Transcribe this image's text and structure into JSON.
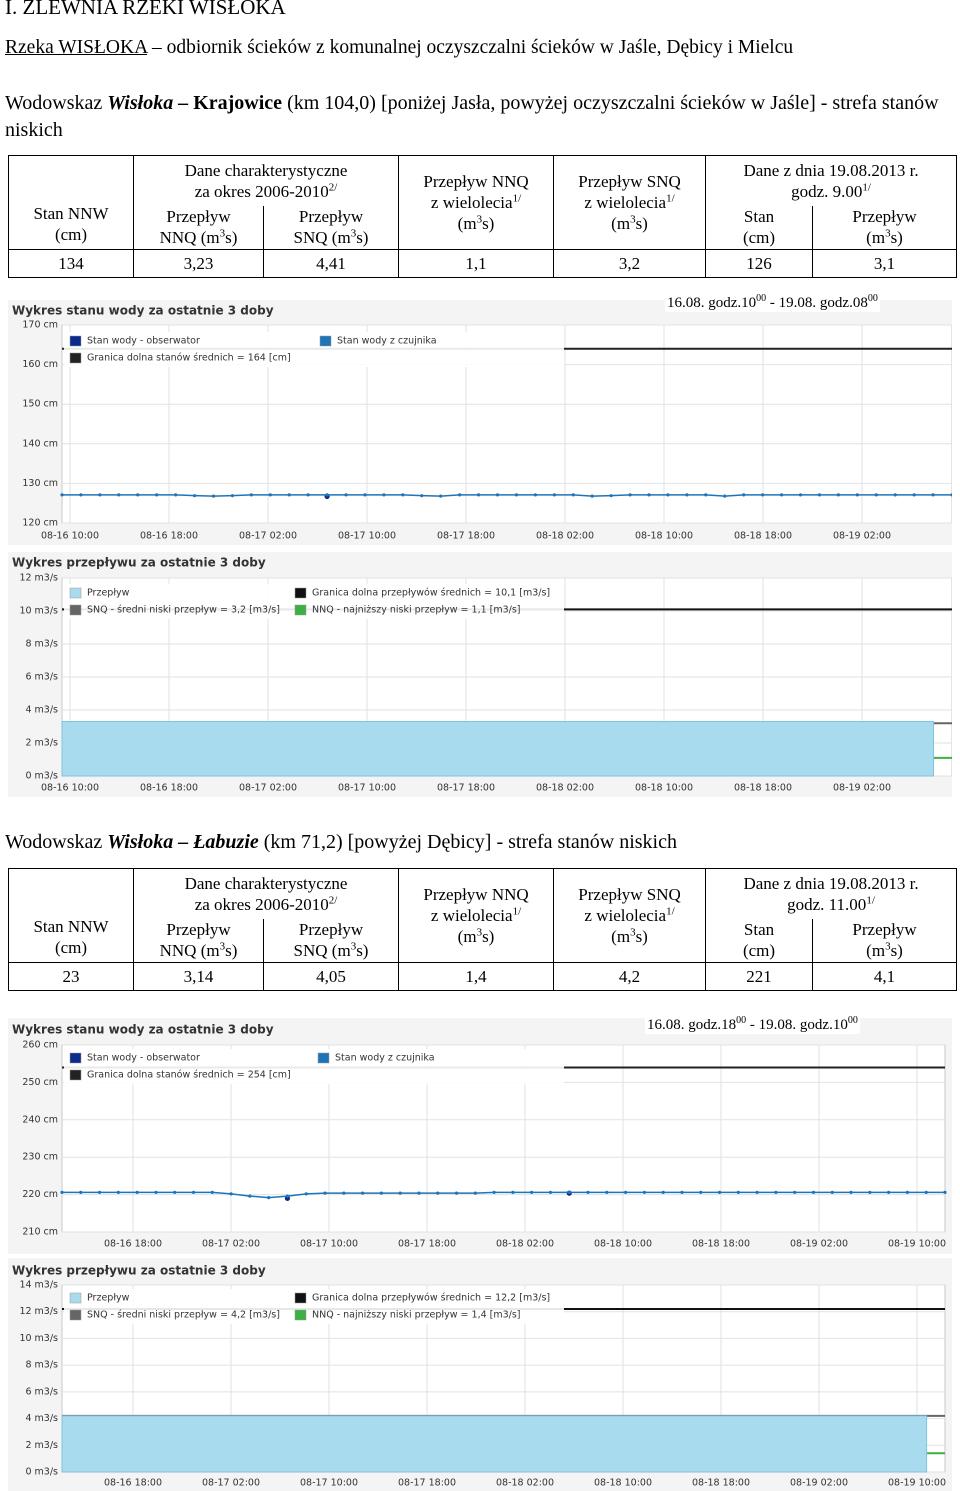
{
  "heading": "I. ZLEWNIA RZEKI WISŁOKA",
  "river": {
    "name": "Rzeka WISŁOKA",
    "text": " – odbiornik ścieków z komunalnej oczyszczalni ścieków w Jaśle, Dębicy i Mielcu"
  },
  "gauges": [
    {
      "title": [
        {
          "text": "Wodowskaz "
        },
        {
          "text": "Wisłoka – ",
          "bold": true,
          "italic": true
        },
        {
          "text": "Krajowice",
          "bold": true
        },
        {
          "text": " (km 104,0) [poniżej Jasła, powyżej oczyszczalni ścieków w Jaśle] - strefa stanów niskich"
        }
      ],
      "table": {
        "group": [
          [
            "Dane charakterystyczne"
          ],
          [
            "za okres 2006-2010",
            {
              "sup": "2/"
            }
          ]
        ],
        "date_group": [
          [
            "Dane z dnia 19.08.2013 r."
          ],
          [
            "godz. 9.00",
            {
              "sup": "1/"
            }
          ]
        ],
        "columns": [
          [
            [
              "Stan NNW"
            ],
            [
              "(cm)"
            ]
          ],
          [
            [
              "Przepływ"
            ],
            [
              "NNQ (m",
              {
                "sup": "3"
              },
              "s)"
            ]
          ],
          [
            [
              "Przepływ"
            ],
            [
              "SNQ (m",
              {
                "sup": "3"
              },
              "s)"
            ]
          ],
          [
            [
              "Przepływ NNQ"
            ],
            [
              "z wielolecia",
              {
                "sup": "1/"
              }
            ],
            [
              "(m",
              {
                "sup": "3"
              },
              "s)"
            ]
          ],
          [
            [
              "Przepływ SNQ"
            ],
            [
              "z wielolecia",
              {
                "sup": "1/"
              }
            ],
            [
              "(m",
              {
                "sup": "3"
              },
              "s)"
            ]
          ],
          [
            [
              "Stan"
            ],
            [
              "(cm)"
            ]
          ],
          [
            [
              "Przepływ"
            ],
            [
              "(m",
              {
                "sup": "3"
              },
              "s)"
            ]
          ]
        ],
        "row": [
          "134",
          "3,23",
          "4,41",
          "1,1",
          "3,2",
          "126",
          "3,1"
        ]
      },
      "period": [
        "16.08. godz.10",
        {
          "sup": "00"
        },
        " - 19.08. godz.08",
        {
          "sup": "00"
        }
      ],
      "level_chart": {
        "type": "line",
        "title": "Wykres stanu wody za ostatnie 3 doby",
        "ylim": [
          120,
          170
        ],
        "yticks": [
          {
            "value": 120,
            "label": "120 cm"
          },
          {
            "value": 130,
            "label": "130 cm"
          },
          {
            "value": 140,
            "label": "140 cm"
          },
          {
            "value": 150,
            "label": "150 cm"
          },
          {
            "value": 160,
            "label": "160 cm"
          },
          {
            "value": 170,
            "label": "170 cm"
          }
        ],
        "xticks": [
          "08-16 10:00",
          "08-16 18:00",
          "08-17 02:00",
          "08-17 10:00",
          "08-17 18:00",
          "08-18 02:00",
          "08-18 10:00",
          "08-18 18:00",
          "08-19 02:00"
        ],
        "series": [
          {
            "name": "Stan wody - obserwator",
            "color": "#0a2a8c",
            "values": [
              null,
              null,
              null,
              null,
              null,
              null,
              null,
              null,
              null,
              null,
              null,
              null,
              null,
              null,
              126.7,
              null,
              null,
              null,
              null,
              null,
              null,
              null,
              null,
              null,
              null,
              null,
              null,
              null,
              null,
              null,
              null,
              null,
              null,
              null,
              null,
              null,
              null,
              null,
              null,
              null,
              null,
              null,
              null,
              null,
              null,
              null,
              null,
              null
            ]
          },
          {
            "name": "Stan wody z czujnika",
            "color": "#1f74b8",
            "values": [
              127.1,
              127.1,
              127.1,
              127.1,
              127.1,
              127.1,
              127.1,
              126.9,
              126.8,
              126.9,
              127.1,
              127.1,
              127.1,
              127.1,
              127.1,
              127.1,
              127.1,
              127.1,
              127.1,
              126.9,
              126.8,
              127.1,
              127.1,
              127.1,
              127.1,
              127.1,
              127.1,
              127.1,
              126.8,
              126.9,
              127.1,
              127.1,
              127.1,
              127.1,
              127.1,
              126.8,
              127.1,
              127.1,
              127.1,
              127.1,
              127.1,
              127.1,
              127.1,
              127.1,
              127.1,
              127.1,
              127.1,
              127.1
            ]
          }
        ],
        "reference_lines": [
          {
            "name": "Granica dolna stanów średnich = 164 [cm]",
            "value": 164,
            "color": "#222222"
          }
        ],
        "grid": true
      },
      "flow_chart": {
        "type": "area",
        "title": "Wykres przepływu za ostatnie 3 doby",
        "ylim": [
          0,
          12
        ],
        "yticks": [
          {
            "value": 0,
            "label": "0 m3/s"
          },
          {
            "value": 2,
            "label": "2 m3/s"
          },
          {
            "value": 4,
            "label": "4 m3/s"
          },
          {
            "value": 6,
            "label": "6 m3/s"
          },
          {
            "value": 8,
            "label": "8 m3/s"
          },
          {
            "value": 10,
            "label": "10 m3/s"
          },
          {
            "value": 12,
            "label": "12 m3/s"
          }
        ],
        "xticks": [
          "08-16 10:00",
          "08-16 18:00",
          "08-17 02:00",
          "08-17 10:00",
          "08-17 18:00",
          "08-18 02:00",
          "08-18 10:00",
          "08-18 18:00",
          "08-19 02:00"
        ],
        "series": [
          {
            "name": "Przepływ",
            "color": "#a8dbee",
            "values": [
              3.3,
              3.3,
              3.3,
              3.3,
              3.3,
              3.3,
              3.3,
              3.3,
              3.3,
              3.3,
              3.3,
              3.3,
              3.3,
              3.3,
              3.3,
              3.3,
              3.3,
              3.3,
              3.3,
              3.3,
              3.3,
              3.3,
              3.3,
              3.3,
              3.3,
              3.3,
              3.3,
              3.3,
              3.3,
              3.3,
              3.3,
              3.3,
              3.3,
              3.3,
              3.3,
              3.3,
              3.3,
              3.3,
              3.3,
              3.3,
              3.3,
              3.3,
              3.3,
              3.3,
              3.3,
              3.3,
              3.3,
              3.3,
              null
            ]
          }
        ],
        "reference_lines": [
          {
            "name": "Granica dolna przepływów średnich = 10,1 [m3/s]",
            "value": 10.1,
            "color": "#111111"
          },
          {
            "name": "SNQ - średni niski przepływ = 3,2 [m3/s]",
            "value": 3.2,
            "color": "#666666"
          },
          {
            "name": "NNQ - najniższy niski przepływ = 1,1 [m3/s]",
            "value": 1.1,
            "color": "#3cb043"
          }
        ],
        "grid": true
      }
    },
    {
      "title": [
        {
          "text": "Wodowskaz "
        },
        {
          "text": "Wisłoka – Łabuzie",
          "bold": true,
          "italic": true
        },
        {
          "text": " (km 71,2) [powyżej Dębicy] - strefa stanów niskich"
        }
      ],
      "table": {
        "group": [
          [
            "Dane charakterystyczne"
          ],
          [
            "za okres 2006-2010",
            {
              "sup": "2/"
            }
          ]
        ],
        "date_group": [
          [
            "Dane z dnia 19.08.2013 r."
          ],
          [
            "godz. 11.00",
            {
              "sup": "1/"
            }
          ]
        ],
        "columns": [
          [
            [
              "Stan NNW"
            ],
            [
              "(cm)"
            ]
          ],
          [
            [
              "Przepływ"
            ],
            [
              "NNQ (m",
              {
                "sup": "3"
              },
              "s)"
            ]
          ],
          [
            [
              "Przepływ"
            ],
            [
              "SNQ (m",
              {
                "sup": "3"
              },
              "s)"
            ]
          ],
          [
            [
              "Przepływ NNQ"
            ],
            [
              "z wielolecia",
              {
                "sup": "1/"
              }
            ],
            [
              "(m",
              {
                "sup": "3"
              },
              "s)"
            ]
          ],
          [
            [
              "Przepływ SNQ"
            ],
            [
              "z wielolecia",
              {
                "sup": "1/"
              }
            ],
            [
              "(m",
              {
                "sup": "3"
              },
              "s)"
            ]
          ],
          [
            [
              "Stan"
            ],
            [
              "(cm)"
            ]
          ],
          [
            [
              "Przepływ"
            ],
            [
              "(m",
              {
                "sup": "3"
              },
              "s)"
            ]
          ]
        ],
        "row": [
          "23",
          "3,14",
          "4,05",
          "1,4",
          "4,2",
          "221",
          "4,1"
        ]
      },
      "period": [
        "16.08. godz.18",
        {
          "sup": "00"
        },
        " - 19.08. godz.10",
        {
          "sup": "00"
        }
      ],
      "level_chart": {
        "type": "line",
        "title": "Wykres stanu wody za ostatnie 3 doby",
        "ylim": [
          210,
          260
        ],
        "yticks": [
          {
            "value": 210,
            "label": "210 cm"
          },
          {
            "value": 220,
            "label": "220 cm"
          },
          {
            "value": 230,
            "label": "230 cm"
          },
          {
            "value": 240,
            "label": "240 cm"
          },
          {
            "value": 250,
            "label": "250 cm"
          },
          {
            "value": 260,
            "label": "260 cm"
          }
        ],
        "xticks": [
          "08-16 18:00",
          "08-17 02:00",
          "08-17 10:00",
          "08-17 18:00",
          "08-18 02:00",
          "08-18 10:00",
          "08-18 18:00",
          "08-19 02:00",
          "08-19 10:00"
        ],
        "series": [
          {
            "name": "Stan wody - obserwator",
            "color": "#0a2a8c",
            "values": [
              null,
              null,
              null,
              null,
              null,
              null,
              null,
              null,
              null,
              null,
              null,
              null,
              219.0,
              null,
              null,
              null,
              null,
              null,
              null,
              null,
              null,
              null,
              null,
              null,
              null,
              null,
              null,
              220.4,
              null,
              null,
              null,
              null,
              null,
              null,
              null,
              null,
              null,
              null,
              null,
              null,
              null,
              null,
              null,
              null,
              null,
              null,
              null,
              null
            ]
          },
          {
            "name": "Stan wody z czujnika",
            "color": "#1f74b8",
            "values": [
              220.6,
              220.6,
              220.6,
              220.6,
              220.6,
              220.6,
              220.6,
              220.6,
              220.6,
              220.2,
              219.6,
              219.2,
              219.6,
              220.2,
              220.4,
              220.4,
              220.4,
              220.4,
              220.4,
              220.4,
              220.4,
              220.4,
              220.4,
              220.6,
              220.6,
              220.6,
              220.6,
              220.6,
              220.6,
              220.6,
              220.6,
              220.6,
              220.6,
              220.6,
              220.6,
              220.6,
              220.6,
              220.6,
              220.6,
              220.6,
              220.6,
              220.6,
              220.6,
              220.6,
              220.6,
              220.6,
              220.6,
              220.6
            ]
          }
        ],
        "reference_lines": [
          {
            "name": "Granica dolna stanów średnich = 254 [cm]",
            "value": 254,
            "color": "#222222"
          }
        ],
        "grid": true
      },
      "flow_chart": {
        "type": "area",
        "title": "Wykres przepływu za ostatnie 3 doby",
        "ylim": [
          0,
          14
        ],
        "yticks": [
          {
            "value": 0,
            "label": "0 m3/s"
          },
          {
            "value": 2,
            "label": "2 m3/s"
          },
          {
            "value": 4,
            "label": "4 m3/s"
          },
          {
            "value": 6,
            "label": "6 m3/s"
          },
          {
            "value": 8,
            "label": "8 m3/s"
          },
          {
            "value": 10,
            "label": "10 m3/s"
          },
          {
            "value": 12,
            "label": "12 m3/s"
          },
          {
            "value": 14,
            "label": "14 m3/s"
          }
        ],
        "xticks": [
          "08-16 18:00",
          "08-17 02:00",
          "08-17 10:00",
          "08-17 18:00",
          "08-18 02:00",
          "08-18 10:00",
          "08-18 18:00",
          "08-19 02:00",
          "08-19 10:00"
        ],
        "series": [
          {
            "name": "Przepływ",
            "color": "#a8dbee",
            "values": [
              4.2,
              4.2,
              4.2,
              4.2,
              4.2,
              4.2,
              4.2,
              4.2,
              4.2,
              4.2,
              4.2,
              4.2,
              4.2,
              4.2,
              4.2,
              4.2,
              4.2,
              4.2,
              4.2,
              4.2,
              4.2,
              4.2,
              4.2,
              4.2,
              4.2,
              4.2,
              4.2,
              4.2,
              4.2,
              4.2,
              4.2,
              4.2,
              4.2,
              4.2,
              4.2,
              4.2,
              4.2,
              4.2,
              4.2,
              4.2,
              4.2,
              4.2,
              4.2,
              4.2,
              4.2,
              4.2,
              4.2,
              4.2,
              null
            ]
          }
        ],
        "reference_lines": [
          {
            "name": "Granica dolna przepływów średnich = 12,2 [m3/s]",
            "value": 12.2,
            "color": "#111111"
          },
          {
            "name": "SNQ - średni niski przepływ = 4,2 [m3/s]",
            "value": 4.2,
            "color": "#666666"
          },
          {
            "name": "NNQ - najniższy niski przepływ = 1,4 [m3/s]",
            "value": 1.4,
            "color": "#3cb043"
          }
        ],
        "grid": true
      }
    }
  ]
}
